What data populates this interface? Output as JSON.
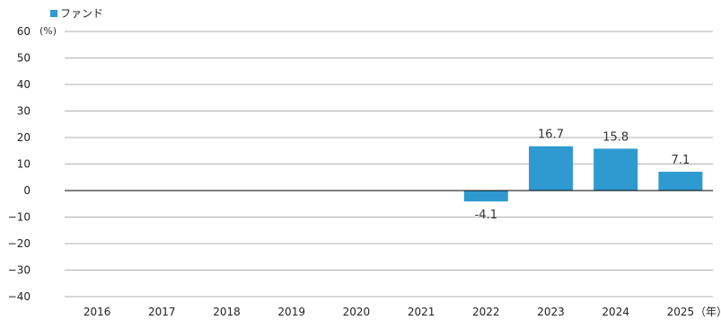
{
  "chart_data": {
    "type": "bar",
    "categories": [
      "2016",
      "2017",
      "2018",
      "2019",
      "2020",
      "2021",
      "2022",
      "2023",
      "2024",
      "2025"
    ],
    "series": [
      {
        "name": "ファンド",
        "values": [
          null,
          null,
          null,
          null,
          null,
          null,
          -4.1,
          16.7,
          15.8,
          7.1
        ]
      }
    ],
    "data_labels": [
      "",
      "",
      "",
      "",
      "",
      "",
      "-4.1",
      "16.7",
      "15.8",
      "7.1"
    ],
    "ylabel": "(%)",
    "xlabel": "（年）",
    "ylim": [
      -40,
      60
    ],
    "yticks": [
      "60",
      "50",
      "40",
      "30",
      "20",
      "10",
      "0",
      "−10",
      "−20",
      "−30",
      "−40"
    ],
    "grid": true,
    "legend_position": "top-left",
    "colors": {
      "bar": "#2e9ad0",
      "grid": "#b0b0b0",
      "zero": "#000000",
      "text": "#222222"
    }
  }
}
